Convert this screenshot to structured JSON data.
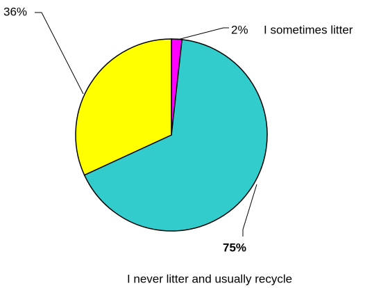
{
  "chart_data": {
    "type": "pie",
    "categories": [
      "I sometimes litter",
      "I never litter and usually recycle",
      null
    ],
    "values": [
      2,
      75,
      36
    ],
    "value_labels": [
      "2%",
      "75%",
      "36%"
    ],
    "colors": [
      "#ff00ff",
      "#33cccc",
      "#ffff00"
    ]
  }
}
